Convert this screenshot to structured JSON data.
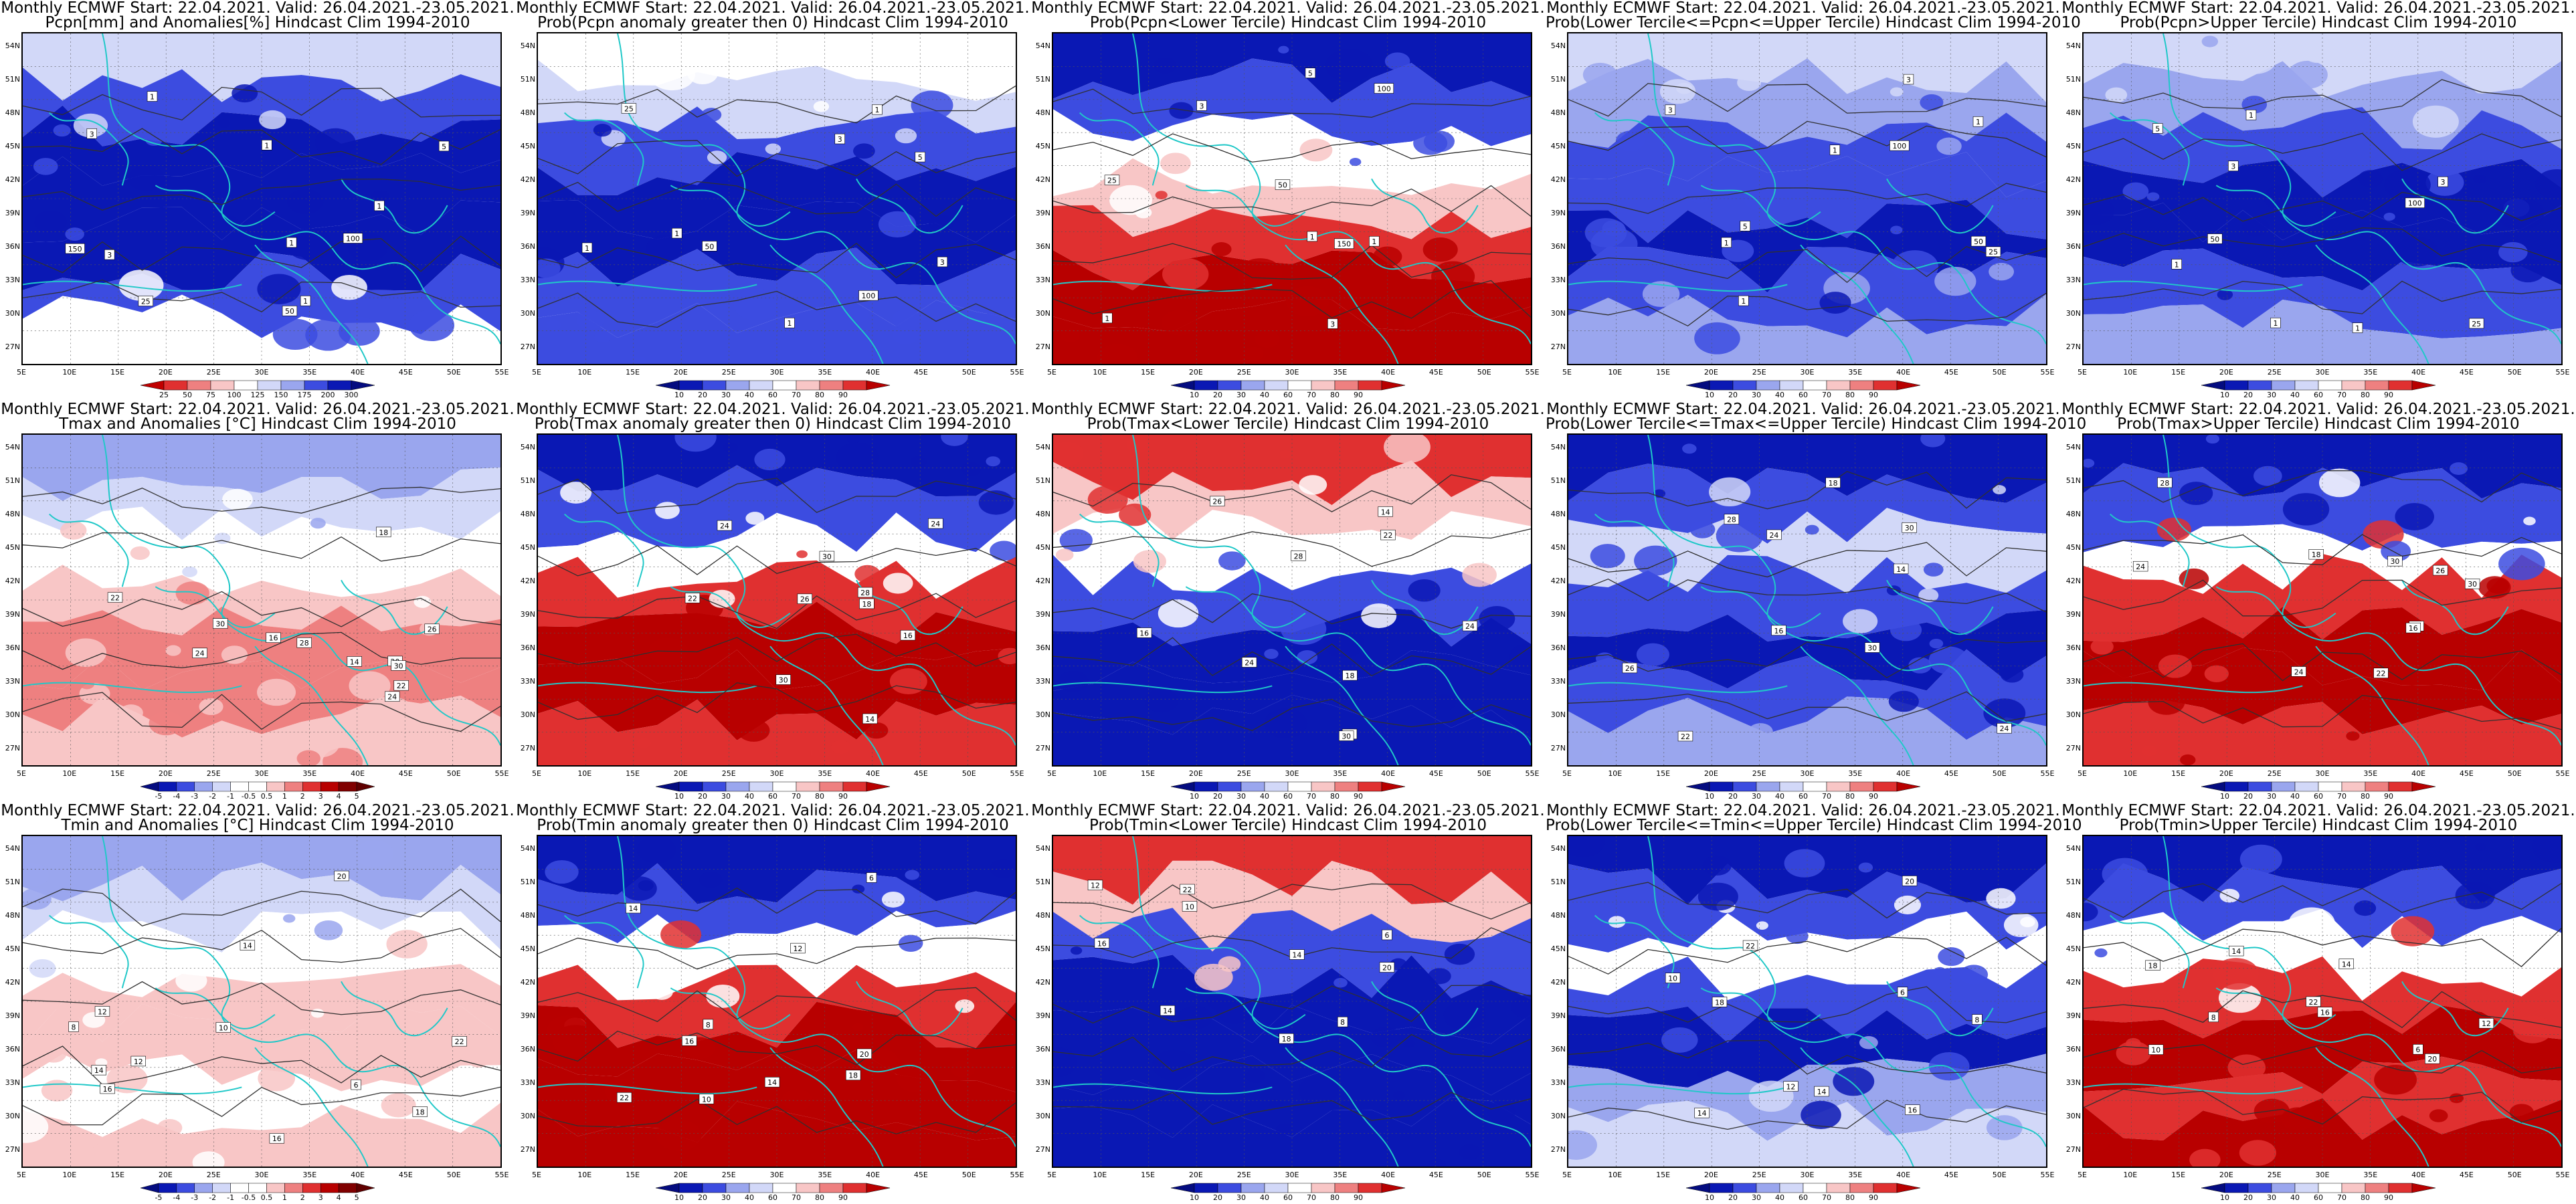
{
  "title_line1": "Monthly ECMWF Start: 22.04.2021. Valid: 26.04.2021.-23.05.2021.",
  "lat_labels": [
    "54N",
    "51N",
    "48N",
    "45N",
    "42N",
    "39N",
    "36N",
    "33N",
    "30N",
    "27N"
  ],
  "lon_labels": [
    "5E",
    "10E",
    "15E",
    "20E",
    "25E",
    "30E",
    "35E",
    "40E",
    "45E",
    "50E",
    "55E"
  ],
  "colors": {
    "dark_blue": "#0a18b4",
    "mid_blue": "#3c4ce0",
    "light_blue": "#9aa6ee",
    "pale_blue": "#d2d8f8",
    "white": "#ffffff",
    "pale_red": "#f8c6c6",
    "light_red": "#ee8080",
    "mid_red": "#e03030",
    "dark_red": "#b80000",
    "contour": "#303030",
    "coast": "#20c8c8"
  },
  "colorbars": {
    "precip": [
      "25",
      "50",
      "75",
      "100",
      "125",
      "150",
      "175",
      "200",
      "300"
    ],
    "temp": [
      "-5",
      "-4",
      "-3",
      "-2",
      "-1",
      "-0.5",
      "0.5",
      "1",
      "2",
      "3",
      "4",
      "5"
    ],
    "prob": [
      "10",
      "20",
      "30",
      "40",
      "60",
      "70",
      "80",
      "90"
    ]
  },
  "panels": [
    {
      "title2": "Pcpn[mm] and Anomalies[%] Hindcast Clim 1994-2010",
      "cbar": "precip",
      "bands": [
        "pale_blue",
        "mid_blue",
        "dark_blue",
        "dark_blue",
        "dark_blue",
        "mid_blue",
        "white"
      ],
      "labels": [
        "100",
        "150",
        "25",
        "50",
        "1",
        "3",
        "5",
        "1",
        "1",
        "1",
        "3",
        "1"
      ]
    },
    {
      "title2": "Prob(Pcpn anomaly greater then 0) Hindcast Clim 1994-2010",
      "cbar": "prob",
      "bands": [
        "white",
        "pale_blue",
        "mid_blue",
        "dark_blue",
        "dark_blue",
        "mid_blue",
        "mid_blue"
      ],
      "labels": [
        "100",
        "50",
        "25",
        "1",
        "3",
        "5",
        "1",
        "1",
        "3",
        "1"
      ]
    },
    {
      "title2": "Prob(Pcpn<Lower Tercile) Hindcast Clim 1994-2010",
      "cbar": "prob",
      "bands": [
        "dark_blue",
        "mid_blue",
        "white",
        "pale_red",
        "mid_red",
        "dark_red",
        "dark_red"
      ],
      "labels": [
        "100",
        "150",
        "25",
        "50",
        "1",
        "3",
        "5",
        "1",
        "1",
        "3"
      ]
    },
    {
      "title2": "Prob(Lower Tercile<=Pcpn<=Upper Tercile) Hindcast Clim 1994-2010",
      "cbar": "prob",
      "bands": [
        "pale_blue",
        "light_blue",
        "mid_blue",
        "mid_blue",
        "dark_blue",
        "mid_blue",
        "light_blue"
      ],
      "labels": [
        "100",
        "50",
        "25",
        "1",
        "3",
        "5",
        "1",
        "1",
        "3",
        "1"
      ]
    },
    {
      "title2": "Prob(Pcpn>Upper Tercile) Hindcast Clim 1994-2010",
      "cbar": "prob",
      "bands": [
        "pale_blue",
        "light_blue",
        "mid_blue",
        "dark_blue",
        "dark_blue",
        "mid_blue",
        "light_blue"
      ],
      "labels": [
        "100",
        "50",
        "25",
        "1",
        "3",
        "5",
        "1",
        "1",
        "3",
        "1"
      ]
    },
    {
      "title2": "Tmax and Anomalies [°C] Hindcast Clim 1994-2010",
      "cbar": "temp",
      "bands": [
        "light_blue",
        "pale_blue",
        "white",
        "pale_red",
        "light_red",
        "light_red",
        "pale_red"
      ],
      "labels": [
        "14",
        "16",
        "18",
        "20",
        "22",
        "24",
        "26",
        "28",
        "30",
        "24",
        "22",
        "30"
      ]
    },
    {
      "title2": "Prob(Tmax anomaly greater then 0) Hindcast Clim 1994-2010",
      "cbar": "prob",
      "bands": [
        "dark_blue",
        "mid_blue",
        "white",
        "mid_red",
        "dark_red",
        "dark_red",
        "mid_red"
      ],
      "labels": [
        "14",
        "16",
        "18",
        "22",
        "24",
        "26",
        "28",
        "30",
        "30",
        "24"
      ]
    },
    {
      "title2": "Prob(Tmax<Lower Tercile) Hindcast Clim 1994-2010",
      "cbar": "prob",
      "bands": [
        "mid_red",
        "pale_red",
        "white",
        "mid_blue",
        "dark_blue",
        "dark_blue",
        "dark_blue"
      ],
      "labels": [
        "14",
        "16",
        "18",
        "22",
        "24",
        "26",
        "28",
        "30",
        "30",
        "24"
      ]
    },
    {
      "title2": "Prob(Lower Tercile<=Tmax<=Upper Tercile) Hindcast Clim 1994-2010",
      "cbar": "prob",
      "bands": [
        "dark_blue",
        "mid_blue",
        "pale_blue",
        "mid_blue",
        "dark_blue",
        "mid_blue",
        "light_blue"
      ],
      "labels": [
        "14",
        "16",
        "18",
        "22",
        "24",
        "26",
        "28",
        "30",
        "30",
        "24"
      ]
    },
    {
      "title2": "Prob(Tmax>Upper Tercile) Hindcast Clim 1994-2010",
      "cbar": "prob",
      "bands": [
        "dark_blue",
        "mid_blue",
        "white",
        "mid_red",
        "dark_red",
        "dark_red",
        "mid_red"
      ],
      "labels": [
        "14",
        "16",
        "18",
        "22",
        "24",
        "26",
        "28",
        "30",
        "30",
        "24"
      ]
    },
    {
      "title2": "Tmin and Anomalies [°C] Hindcast Clim 1994-2010",
      "cbar": "temp",
      "bands": [
        "light_blue",
        "pale_blue",
        "white",
        "pale_red",
        "pale_red",
        "white",
        "pale_red"
      ],
      "labels": [
        "6",
        "8",
        "10",
        "12",
        "14",
        "16",
        "18",
        "20",
        "22",
        "14",
        "12",
        "16"
      ]
    },
    {
      "title2": "Prob(Tmin anomaly greater then 0) Hindcast Clim 1994-2010",
      "cbar": "prob",
      "bands": [
        "dark_blue",
        "mid_blue",
        "white",
        "mid_red",
        "dark_red",
        "dark_red",
        "dark_red"
      ],
      "labels": [
        "6",
        "8",
        "10",
        "12",
        "14",
        "16",
        "18",
        "20",
        "22",
        "14"
      ]
    },
    {
      "title2": "Prob(Tmin<Lower Tercile) Hindcast Clim 1994-2010",
      "cbar": "prob",
      "bands": [
        "mid_red",
        "pale_red",
        "mid_blue",
        "dark_blue",
        "dark_blue",
        "dark_blue",
        "dark_blue"
      ],
      "labels": [
        "6",
        "8",
        "10",
        "12",
        "14",
        "16",
        "18",
        "20",
        "22",
        "14"
      ]
    },
    {
      "title2": "Prob(Lower Tercile<=Tmin<=Upper Tercile) Hindcast Clim 1994-2010",
      "cbar": "prob",
      "bands": [
        "dark_blue",
        "mid_blue",
        "white",
        "mid_blue",
        "dark_blue",
        "light_blue",
        "pale_blue"
      ],
      "labels": [
        "6",
        "8",
        "10",
        "12",
        "14",
        "16",
        "18",
        "20",
        "22",
        "14"
      ]
    },
    {
      "title2": "Prob(Tmin>Upper Tercile) Hindcast Clim 1994-2010",
      "cbar": "prob",
      "bands": [
        "dark_blue",
        "mid_blue",
        "white",
        "mid_red",
        "dark_red",
        "mid_red",
        "dark_red"
      ],
      "labels": [
        "6",
        "8",
        "10",
        "12",
        "14",
        "16",
        "18",
        "20",
        "22",
        "14"
      ]
    }
  ]
}
